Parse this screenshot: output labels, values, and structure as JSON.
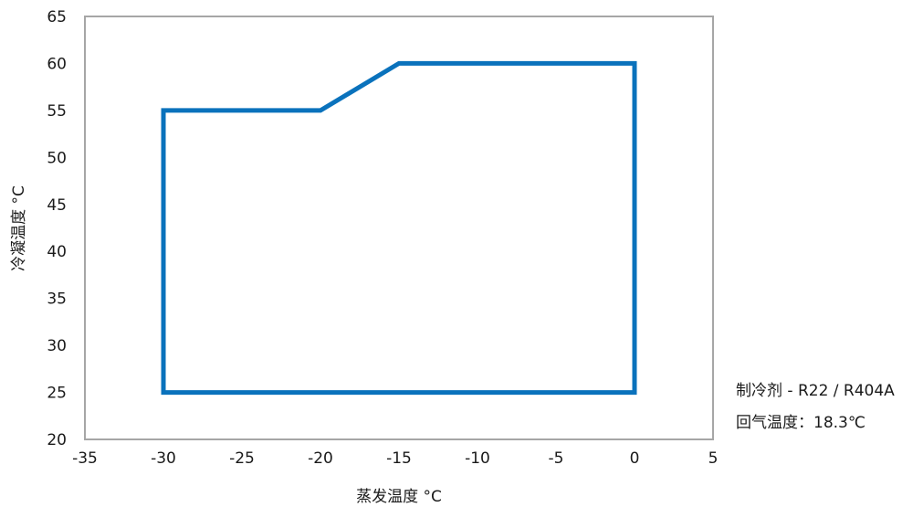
{
  "chart_data": {
    "type": "line",
    "title": "",
    "xlabel": "蒸发温度 °C",
    "ylabel": "冷凝温度 °C",
    "xlim": [
      -35,
      5
    ],
    "ylim": [
      20,
      65
    ],
    "xticks": [
      -35,
      -30,
      -25,
      -20,
      -15,
      -10,
      -5,
      0,
      5
    ],
    "yticks": [
      20,
      25,
      30,
      35,
      40,
      45,
      50,
      55,
      60,
      65
    ],
    "grid": false,
    "series": [
      {
        "color": "#0a72bc",
        "closed": true,
        "points": [
          {
            "x": -30,
            "y": 25
          },
          {
            "x": -30,
            "y": 55
          },
          {
            "x": -20,
            "y": 55
          },
          {
            "x": -15,
            "y": 60
          },
          {
            "x": 0,
            "y": 60
          },
          {
            "x": 0,
            "y": 25
          }
        ]
      }
    ],
    "annotations": [
      "制冷剂 - R22 / R404A",
      "回气温度：18.3℃"
    ]
  }
}
